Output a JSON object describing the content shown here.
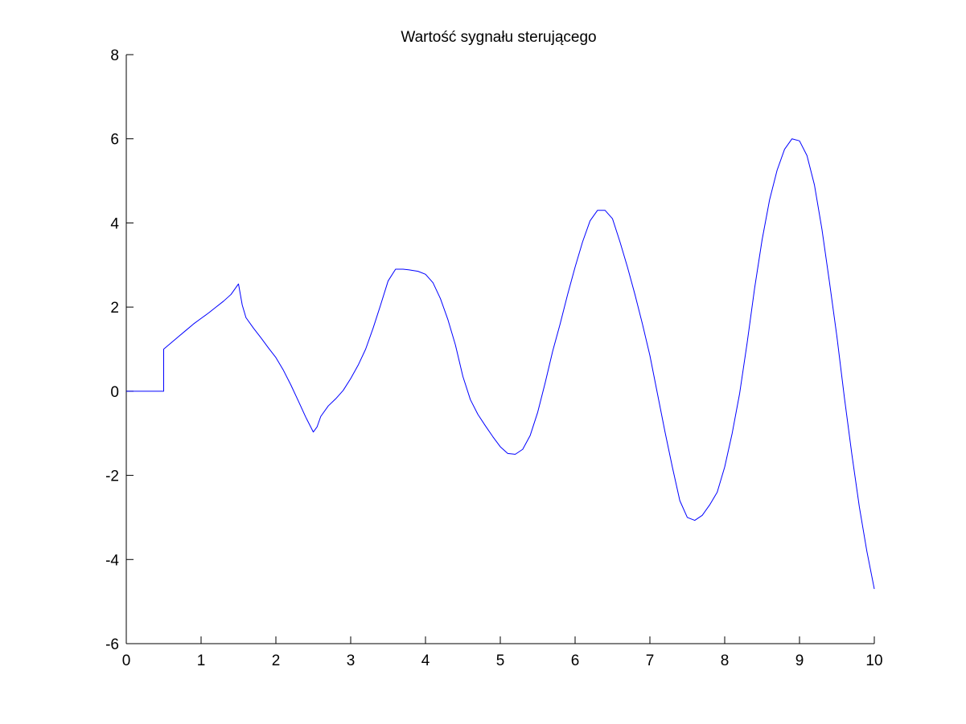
{
  "chart_data": {
    "type": "line",
    "title": "Wartość sygnału sterującego",
    "xlabel": "",
    "ylabel": "",
    "xlim": [
      0,
      10
    ],
    "ylim": [
      -6,
      8
    ],
    "xticks": [
      0,
      1,
      2,
      3,
      4,
      5,
      6,
      7,
      8,
      9,
      10
    ],
    "yticks": [
      -6,
      -4,
      -2,
      0,
      2,
      4,
      6,
      8
    ],
    "grid": false,
    "line_color": "#0000ff",
    "axis_color": "#000000",
    "series": [
      {
        "points": [
          [
            0,
            0
          ],
          [
            0.5,
            0
          ],
          [
            0.5,
            1.0
          ],
          [
            0.6,
            1.15
          ],
          [
            0.7,
            1.3
          ],
          [
            0.8,
            1.45
          ],
          [
            0.9,
            1.6
          ],
          [
            1.0,
            1.73
          ],
          [
            1.1,
            1.86
          ],
          [
            1.2,
            2.0
          ],
          [
            1.3,
            2.14
          ],
          [
            1.4,
            2.3
          ],
          [
            1.5,
            2.55
          ],
          [
            1.55,
            2.05
          ],
          [
            1.6,
            1.75
          ],
          [
            1.7,
            1.5
          ],
          [
            1.8,
            1.27
          ],
          [
            1.9,
            1.03
          ],
          [
            2.0,
            0.8
          ],
          [
            2.1,
            0.5
          ],
          [
            2.2,
            0.15
          ],
          [
            2.3,
            -0.23
          ],
          [
            2.4,
            -0.62
          ],
          [
            2.5,
            -0.97
          ],
          [
            2.55,
            -0.85
          ],
          [
            2.6,
            -0.6
          ],
          [
            2.7,
            -0.35
          ],
          [
            2.8,
            -0.18
          ],
          [
            2.9,
            0.02
          ],
          [
            3.0,
            0.3
          ],
          [
            3.1,
            0.62
          ],
          [
            3.2,
            1.0
          ],
          [
            3.3,
            1.5
          ],
          [
            3.4,
            2.05
          ],
          [
            3.5,
            2.62
          ],
          [
            3.6,
            2.9
          ],
          [
            3.7,
            2.9
          ],
          [
            3.8,
            2.88
          ],
          [
            3.9,
            2.85
          ],
          [
            4.0,
            2.78
          ],
          [
            4.1,
            2.58
          ],
          [
            4.2,
            2.2
          ],
          [
            4.3,
            1.7
          ],
          [
            4.4,
            1.1
          ],
          [
            4.5,
            0.35
          ],
          [
            4.6,
            -0.2
          ],
          [
            4.7,
            -0.55
          ],
          [
            4.8,
            -0.82
          ],
          [
            4.9,
            -1.08
          ],
          [
            5.0,
            -1.32
          ],
          [
            5.1,
            -1.48
          ],
          [
            5.2,
            -1.5
          ],
          [
            5.3,
            -1.38
          ],
          [
            5.4,
            -1.05
          ],
          [
            5.5,
            -0.5
          ],
          [
            5.6,
            0.2
          ],
          [
            5.7,
            0.95
          ],
          [
            5.8,
            1.6
          ],
          [
            5.9,
            2.3
          ],
          [
            6.0,
            2.95
          ],
          [
            6.1,
            3.55
          ],
          [
            6.2,
            4.05
          ],
          [
            6.3,
            4.3
          ],
          [
            6.4,
            4.3
          ],
          [
            6.5,
            4.1
          ],
          [
            6.6,
            3.55
          ],
          [
            6.7,
            2.95
          ],
          [
            6.8,
            2.3
          ],
          [
            6.9,
            1.6
          ],
          [
            7.0,
            0.85
          ],
          [
            7.1,
            -0.05
          ],
          [
            7.2,
            -0.95
          ],
          [
            7.3,
            -1.8
          ],
          [
            7.4,
            -2.6
          ],
          [
            7.5,
            -3.0
          ],
          [
            7.6,
            -3.07
          ],
          [
            7.7,
            -2.95
          ],
          [
            7.8,
            -2.7
          ],
          [
            7.9,
            -2.4
          ],
          [
            8.0,
            -1.8
          ],
          [
            8.1,
            -1.0
          ],
          [
            8.2,
            -0.05
          ],
          [
            8.3,
            1.15
          ],
          [
            8.4,
            2.45
          ],
          [
            8.5,
            3.6
          ],
          [
            8.6,
            4.55
          ],
          [
            8.7,
            5.25
          ],
          [
            8.8,
            5.75
          ],
          [
            8.9,
            6.0
          ],
          [
            9.0,
            5.95
          ],
          [
            9.1,
            5.6
          ],
          [
            9.2,
            4.9
          ],
          [
            9.3,
            3.85
          ],
          [
            9.4,
            2.6
          ],
          [
            9.5,
            1.3
          ],
          [
            9.6,
            -0.15
          ],
          [
            9.7,
            -1.5
          ],
          [
            9.8,
            -2.75
          ],
          [
            9.9,
            -3.8
          ],
          [
            10.0,
            -4.7
          ]
        ]
      }
    ]
  }
}
